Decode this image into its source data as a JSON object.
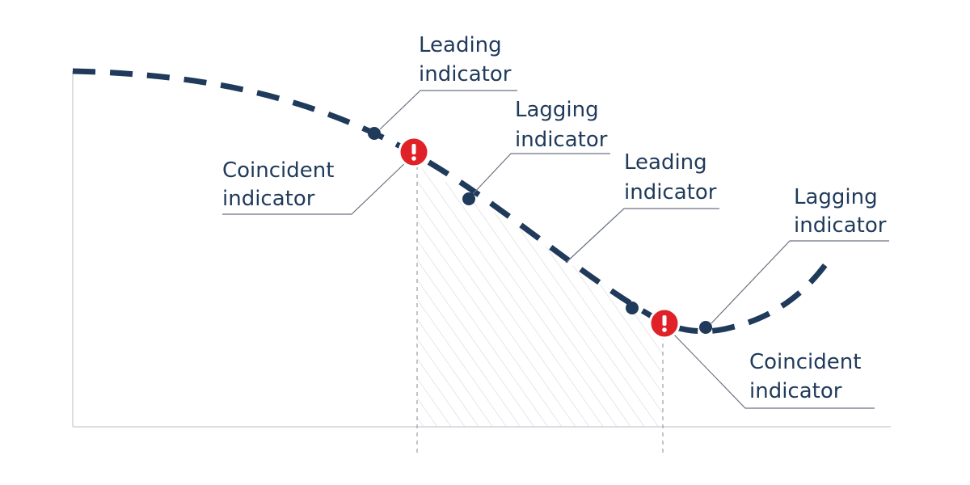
{
  "annotations": [
    {
      "lines": [
        "Leading",
        "indicator"
      ]
    },
    {
      "lines": [
        "Lagging",
        "indicator"
      ]
    },
    {
      "lines": [
        "Leading",
        "indicator"
      ]
    },
    {
      "lines": [
        "Lagging",
        "indicator"
      ]
    },
    {
      "lines": [
        "Coincident",
        "indicator"
      ]
    },
    {
      "lines": [
        "Coincident",
        "indicator"
      ]
    }
  ]
}
